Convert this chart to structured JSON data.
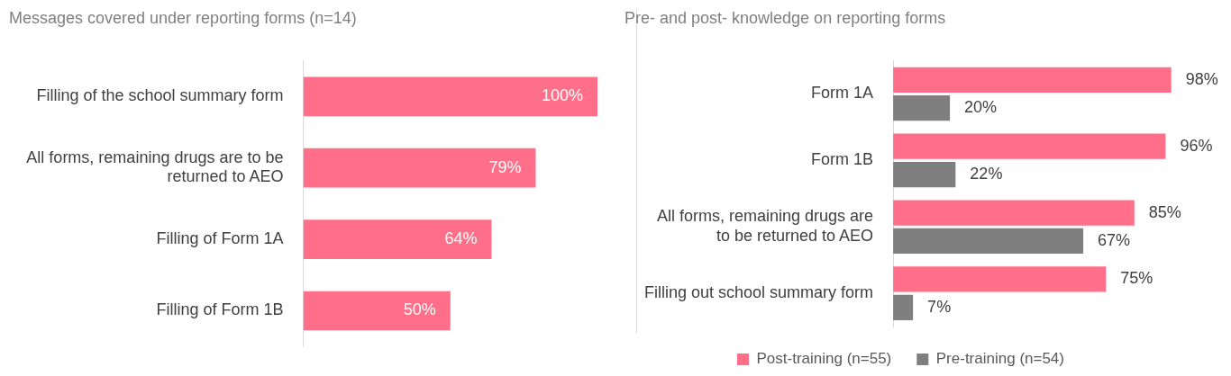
{
  "chart_data": [
    {
      "type": "bar",
      "orientation": "horizontal",
      "title": "Messages covered under reporting forms (n=14)",
      "categories": [
        "Filling of the school summary form",
        "All forms, remaining drugs are to be returned to AEO",
        "Filling of Form 1A",
        "Filling of Form 1B"
      ],
      "values": [
        100,
        79,
        64,
        50
      ],
      "value_labels": [
        "100%",
        "79%",
        "64%",
        "50%"
      ],
      "color": "#ff6f8a",
      "legend": false,
      "grid": false
    },
    {
      "type": "bar",
      "orientation": "horizontal",
      "title": "Pre- and post- knowledge on reporting forms",
      "categories": [
        "Form 1A",
        "Form 1B",
        "All forms, remaining drugs are to be returned to AEO",
        "Filling out school summary form"
      ],
      "series": [
        {
          "name": "Post-training (n=55)",
          "color": "#ff6f8a",
          "values": [
            98,
            96,
            85,
            75
          ],
          "value_labels": [
            "98%",
            "96%",
            "85%",
            "75%"
          ]
        },
        {
          "name": "Pre-training (n=54)",
          "color": "#7f7f7f",
          "values": [
            20,
            22,
            67,
            7
          ],
          "value_labels": [
            "20%",
            "22%",
            "67%",
            "7%"
          ]
        }
      ],
      "legend": "bottom",
      "grid": false
    }
  ]
}
